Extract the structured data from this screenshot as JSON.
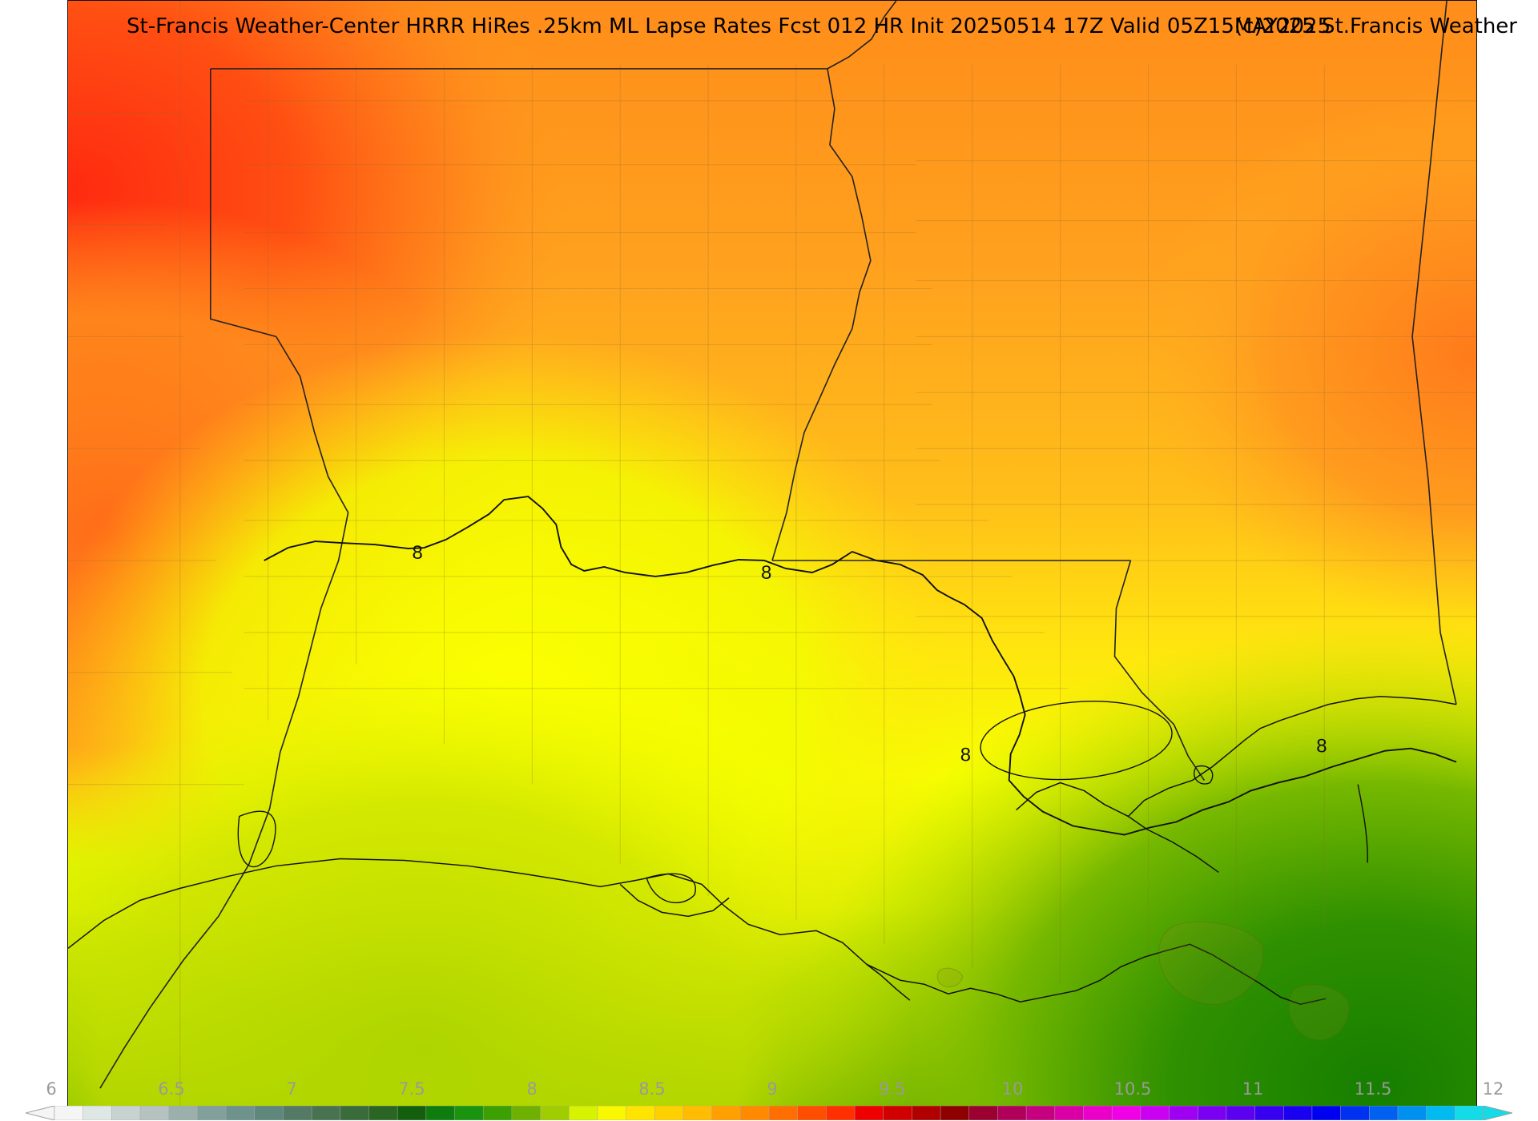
{
  "header": {
    "title": "St-Francis Weather-Center HRRR HiRes .25km ML Lapse Rates  Fcst 012 HR Init 20250514 17Z  Valid 05Z15MAY2025",
    "copyright": "(c)2025 St.Francis Weather"
  },
  "map": {
    "contour_labels": [
      "8",
      "8",
      "8",
      "8"
    ],
    "colors": {
      "red_orange": "#ff3b12",
      "orange": "#ff9a1f",
      "amber": "#ffbd19",
      "yellow": "#ffe50f",
      "bright_yellow": "#f6ff00",
      "lime": "#c7e101",
      "green": "#7fbf00",
      "dark_green": "#2d8f00"
    }
  },
  "colorbar": {
    "labels": [
      "6",
      "6.5",
      "7",
      "7.5",
      "8",
      "8.5",
      "9",
      "9.5",
      "10",
      "10.5",
      "11",
      "11.5",
      "12"
    ],
    "colors": [
      "#f5f5f5",
      "#dfe7e4",
      "#c8d2d0",
      "#b6c2bf",
      "#9bb0ab",
      "#81a09b",
      "#6e938d",
      "#60877b",
      "#547a66",
      "#497251",
      "#3a6b3b",
      "#2b6524",
      "#145f0e",
      "#0f7d0e",
      "#1a930f",
      "#3ca000",
      "#6eb100",
      "#9fcd00",
      "#d6f300",
      "#f9f800",
      "#ffe400",
      "#ffd000",
      "#ffbc00",
      "#ffa000",
      "#ff8a00",
      "#ff6e00",
      "#ff4e00",
      "#ff2f00",
      "#ee0000",
      "#d10000",
      "#b10000",
      "#8e0000",
      "#9b0030",
      "#b0005a",
      "#c7007f",
      "#db00a6",
      "#ea00c8",
      "#f000e4",
      "#ca00f2",
      "#a000f2",
      "#7b00f2",
      "#5c00f0",
      "#3700f0",
      "#1a00f0",
      "#0000f0",
      "#0030f0",
      "#0060f0",
      "#0090f0",
      "#00bbf0",
      "#13dce8"
    ]
  }
}
